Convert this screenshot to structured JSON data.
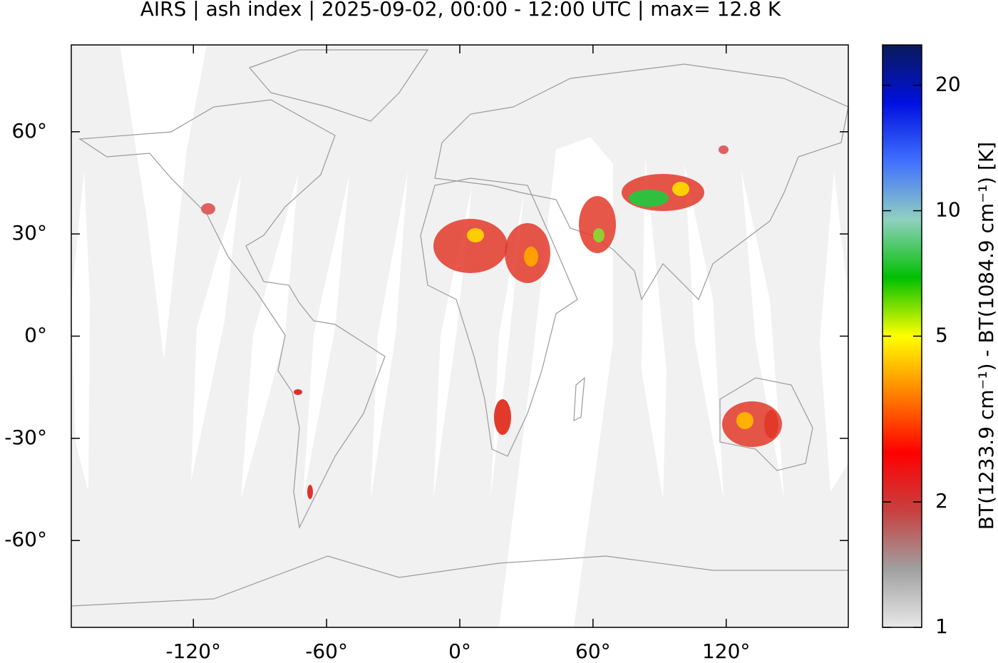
{
  "chart_data": {
    "type": "map",
    "title": "AIRS | ash index | 2025-09-02, 00:00 - 12:00 UTC | max= 12.8 K",
    "xlim": [
      -175,
      175
    ],
    "ylim": [
      -85.5,
      85.5
    ],
    "xticks": [
      {
        "value": -120,
        "label": "-120°"
      },
      {
        "value": -60,
        "label": "-60°"
      },
      {
        "value": 0,
        "label": "0°"
      },
      {
        "value": 60,
        "label": "60°"
      },
      {
        "value": 120,
        "label": "120°"
      }
    ],
    "yticks": [
      {
        "value": -60,
        "label": "-60°"
      },
      {
        "value": -30,
        "label": "-30°"
      },
      {
        "value": 0,
        "label": "0°"
      },
      {
        "value": 30,
        "label": "30°"
      },
      {
        "value": 60,
        "label": "60°"
      }
    ],
    "colorbar": {
      "label": "BT(1233.9 cm⁻¹) - BT(1084.9 cm⁻¹) [K]",
      "log": true,
      "clim": [
        1,
        25
      ],
      "ticks": [
        1,
        2,
        5,
        10,
        20
      ],
      "colormap": [
        "#e8e8e8",
        "#a0a0a0",
        "#c84040",
        "#ff0000",
        "#ff8000",
        "#ffff00",
        "#00c000",
        "#90d0c0",
        "#4070ff",
        "#0010e0",
        "#0a1a5a"
      ]
    }
  }
}
